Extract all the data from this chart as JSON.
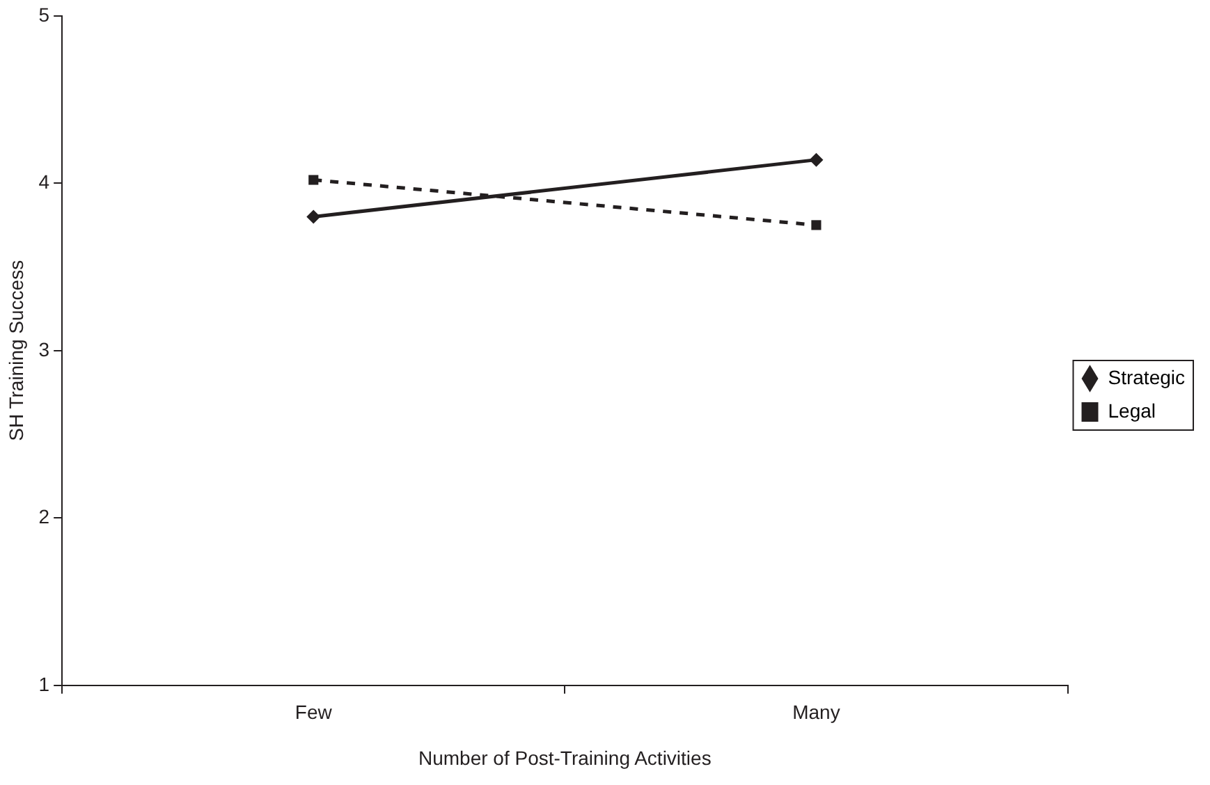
{
  "chart_data": {
    "type": "line",
    "xlabel": "Number of Post-Training Activities",
    "ylabel": "SH Training Success",
    "categories": [
      "Few",
      "Many"
    ],
    "series": [
      {
        "name": "Strategic",
        "color": "#231f20",
        "values": [
          3.8,
          4.14
        ],
        "marker": "diamond",
        "line_style": "solid"
      },
      {
        "name": "Legal",
        "color": "#231f20",
        "values": [
          4.02,
          3.75
        ],
        "marker": "square",
        "line_style": "dashed"
      }
    ],
    "ylim": [
      1,
      5
    ],
    "yticks": [
      1,
      2,
      3,
      4,
      5
    ],
    "grid": false,
    "legend": "right"
  }
}
